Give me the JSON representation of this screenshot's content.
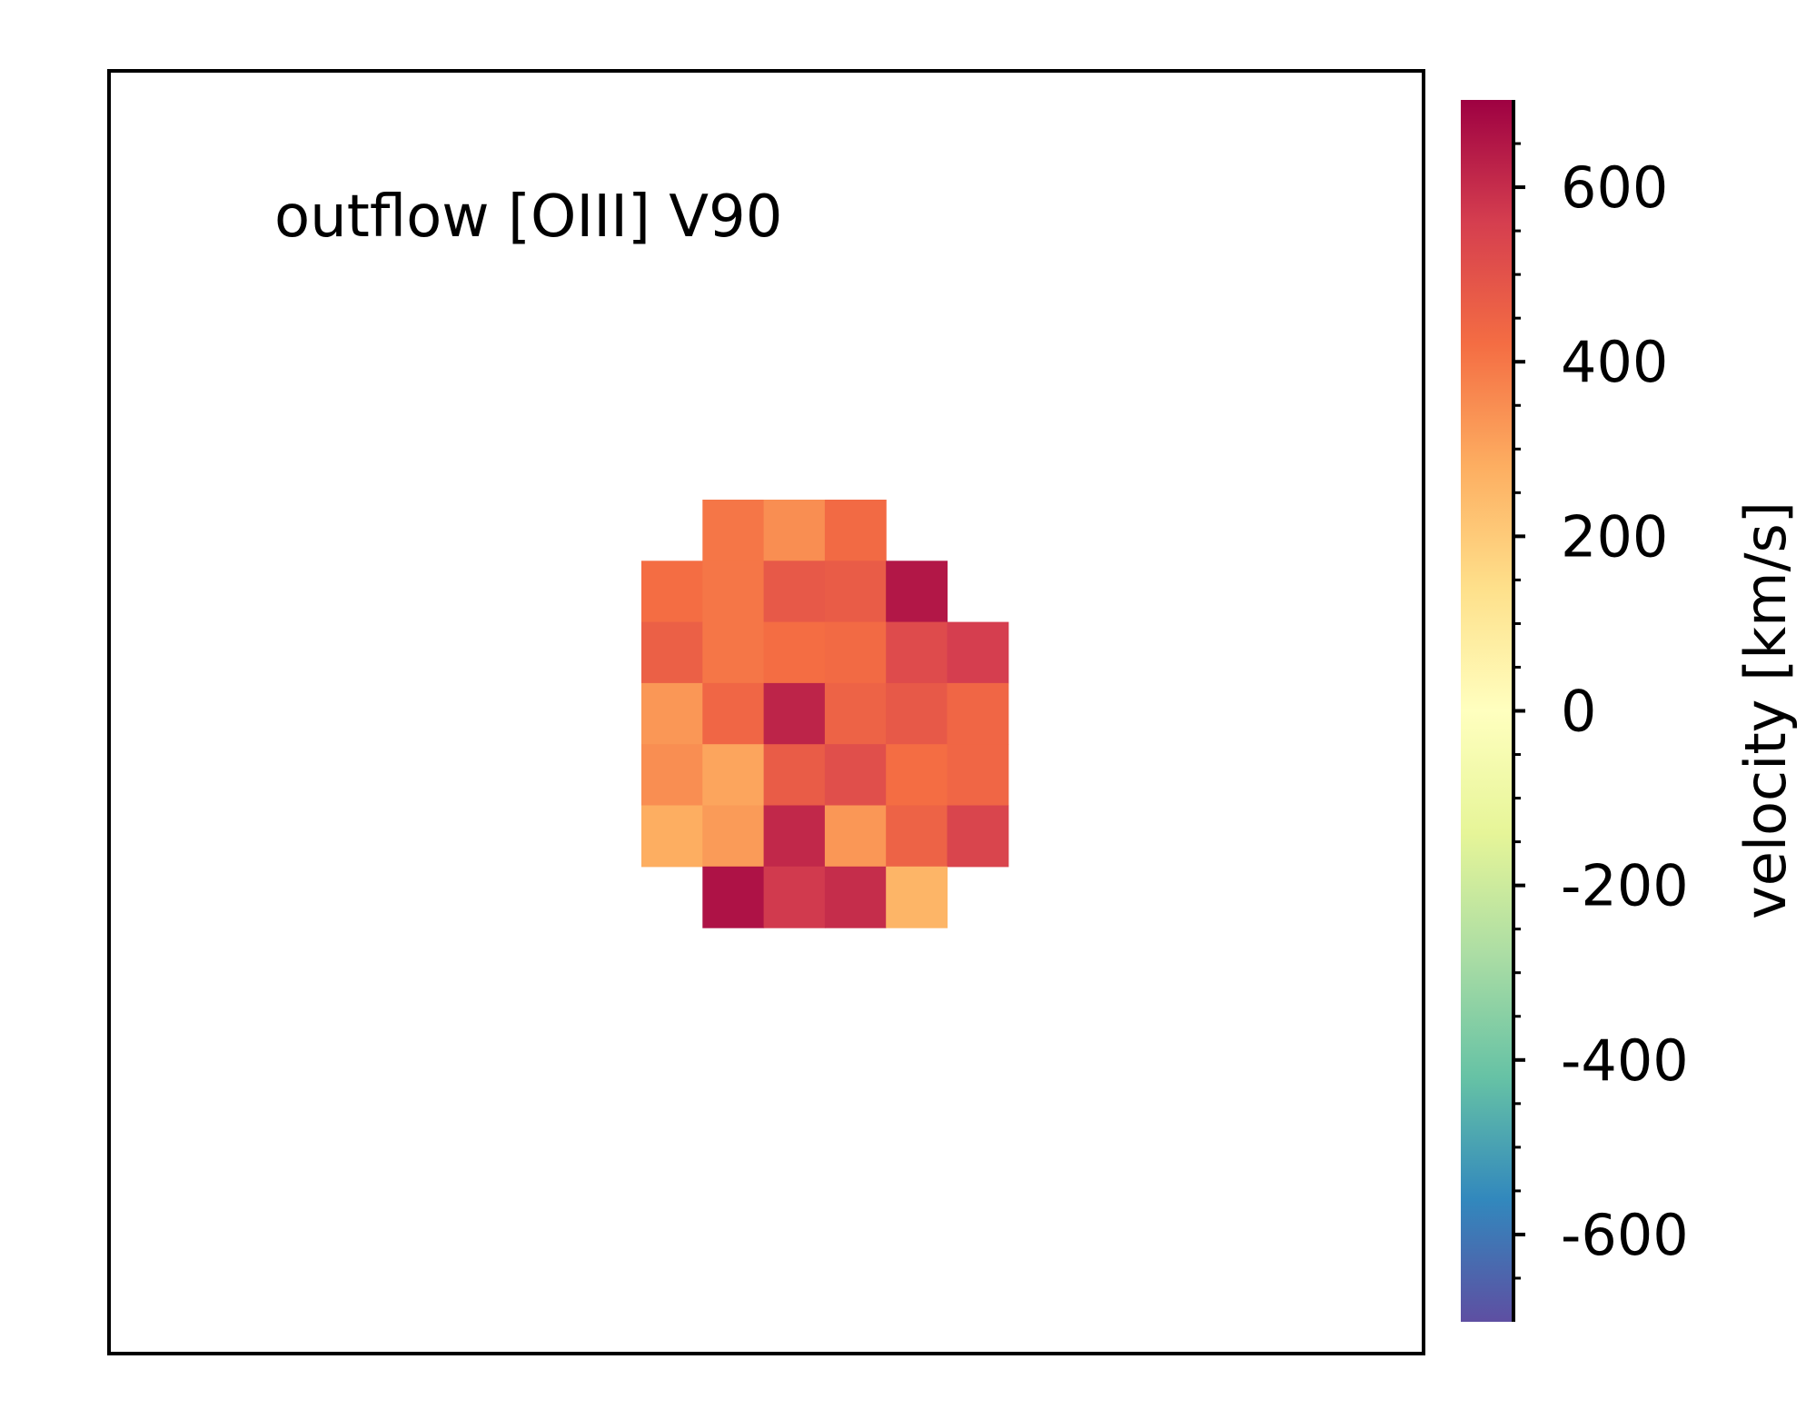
{
  "chart_data": {
    "type": "heatmap",
    "annotation": "outflow [OIII] V90",
    "z": [
      [
        null,
        400,
        350,
        430,
        null,
        null
      ],
      [
        420,
        400,
        480,
        470,
        650,
        null
      ],
      [
        460,
        400,
        420,
        430,
        520,
        560
      ],
      [
        330,
        440,
        620,
        450,
        480,
        440
      ],
      [
        350,
        300,
        470,
        510,
        420,
        440
      ],
      [
        280,
        320,
        610,
        330,
        450,
        540
      ],
      [
        null,
        660,
        570,
        600,
        260,
        null
      ]
    ],
    "colormap": [
      "#5e4fa2",
      "#3288bd",
      "#66c2a5",
      "#abdda4",
      "#e6f598",
      "#ffffbf",
      "#fee08b",
      "#fdae61",
      "#f46d43",
      "#d53e4f",
      "#9e0142"
    ],
    "colorbar_label": "velocity [km/s]",
    "clim": [
      -700,
      700
    ],
    "cticks": [
      -600,
      -400,
      -200,
      0,
      200,
      400,
      600
    ],
    "cminorticks": [
      -650,
      -550,
      -500,
      -450,
      -350,
      -300,
      -250,
      -150,
      -100,
      -50,
      50,
      100,
      150,
      250,
      300,
      350,
      450,
      500,
      550,
      650
    ]
  }
}
